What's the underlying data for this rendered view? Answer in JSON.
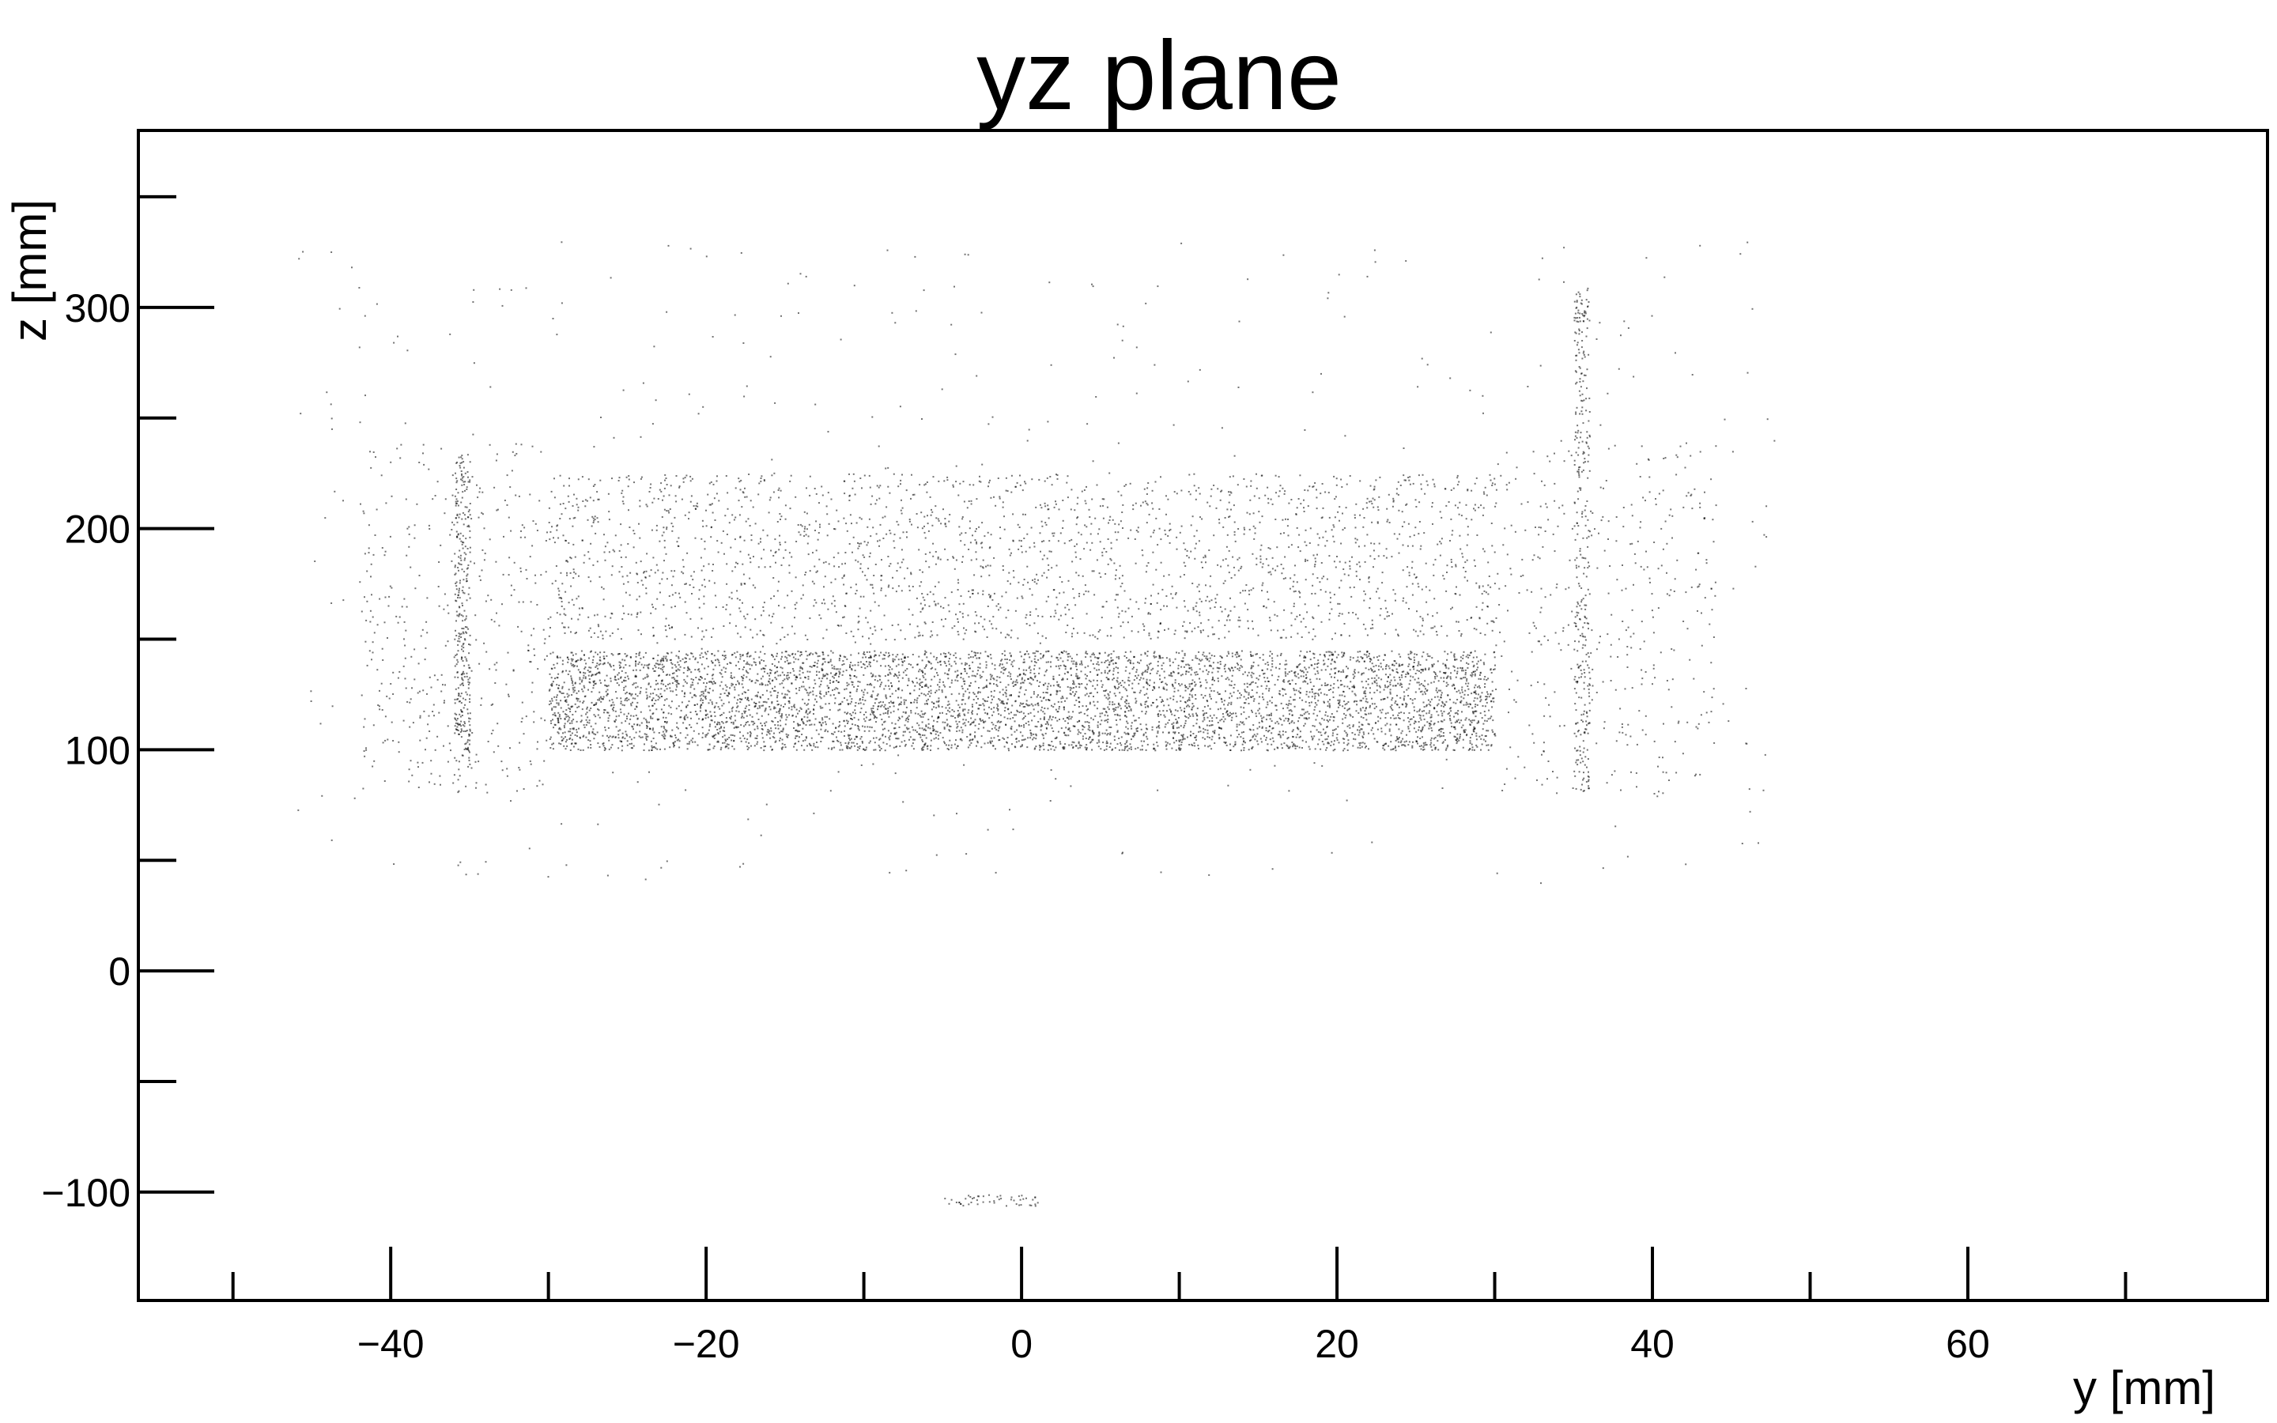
{
  "chart_data": {
    "type": "scatter",
    "title": "yz plane",
    "xlabel": "y [mm]",
    "ylabel": "z [mm]",
    "xlim": [
      -56,
      79
    ],
    "ylim": [
      -149,
      380
    ],
    "grid": false,
    "legend": "none",
    "x_ticks": {
      "values": [
        -40,
        -20,
        0,
        20,
        40,
        60
      ],
      "labels": [
        "−40",
        "−20",
        "0",
        "20",
        "40",
        "60"
      ],
      "minor": [
        -50,
        -30,
        -10,
        10,
        30,
        50,
        70
      ]
    },
    "y_ticks": {
      "values": [
        -100,
        0,
        100,
        200,
        300
      ],
      "labels": [
        "−100",
        "0",
        "100",
        "200",
        "300"
      ],
      "minor": [
        -50,
        50,
        150,
        250,
        350
      ]
    },
    "marker_color": "#000000",
    "regions": [
      {
        "y_range": [
          -30,
          30
        ],
        "z_range": [
          100,
          145
        ],
        "points": 5600
      },
      {
        "y_range": [
          -30,
          30
        ],
        "z_range": [
          150,
          225
        ],
        "points": 2200
      },
      {
        "y_range": [
          -36,
          -35
        ],
        "z_range": [
          95,
          235
        ],
        "points": 320
      },
      {
        "y_range": [
          35,
          36
        ],
        "z_range": [
          80,
          310
        ],
        "points": 320
      },
      {
        "y_range": [
          -42,
          -30
        ],
        "z_range": [
          80,
          240
        ],
        "points": 380
      },
      {
        "y_range": [
          30,
          44
        ],
        "z_range": [
          80,
          240
        ],
        "points": 380
      },
      {
        "y_range": [
          -46,
          48
        ],
        "z_range": [
          40,
          330
        ],
        "points": 450
      },
      {
        "y_range": [
          -5,
          1
        ],
        "z_range": [
          -106,
          -101
        ],
        "points": 50
      }
    ]
  }
}
